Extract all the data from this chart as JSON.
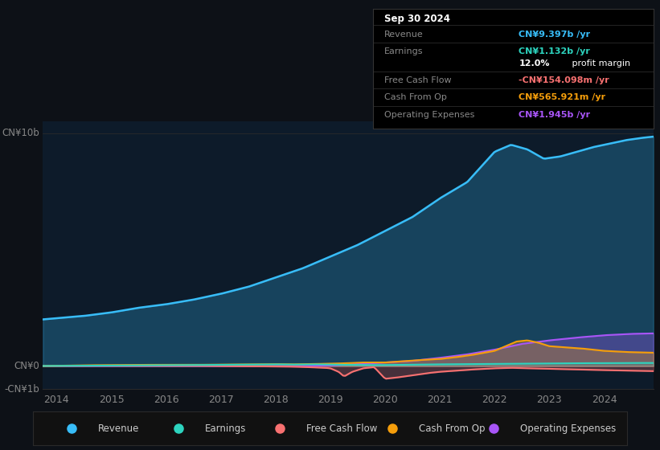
{
  "bg_color": "#0d1117",
  "plot_bg_color": "#0d1b2a",
  "colors": {
    "revenue": "#38bdf8",
    "earnings": "#2dd4bf",
    "free_cash_flow": "#f87171",
    "cash_from_op": "#f59e0b",
    "operating_expenses": "#a855f7"
  },
  "x_ticks": [
    2014,
    2015,
    2016,
    2017,
    2018,
    2019,
    2020,
    2021,
    2022,
    2023,
    2024
  ],
  "ylabel_top": "CN¥10b",
  "y_zero_label": "CN¥0",
  "ylabel_bottom": "-CN¥1b",
  "legend": [
    {
      "label": "Revenue",
      "color": "#38bdf8"
    },
    {
      "label": "Earnings",
      "color": "#2dd4bf"
    },
    {
      "label": "Free Cash Flow",
      "color": "#f87171"
    },
    {
      "label": "Cash From Op",
      "color": "#f59e0b"
    },
    {
      "label": "Operating Expenses",
      "color": "#a855f7"
    }
  ]
}
